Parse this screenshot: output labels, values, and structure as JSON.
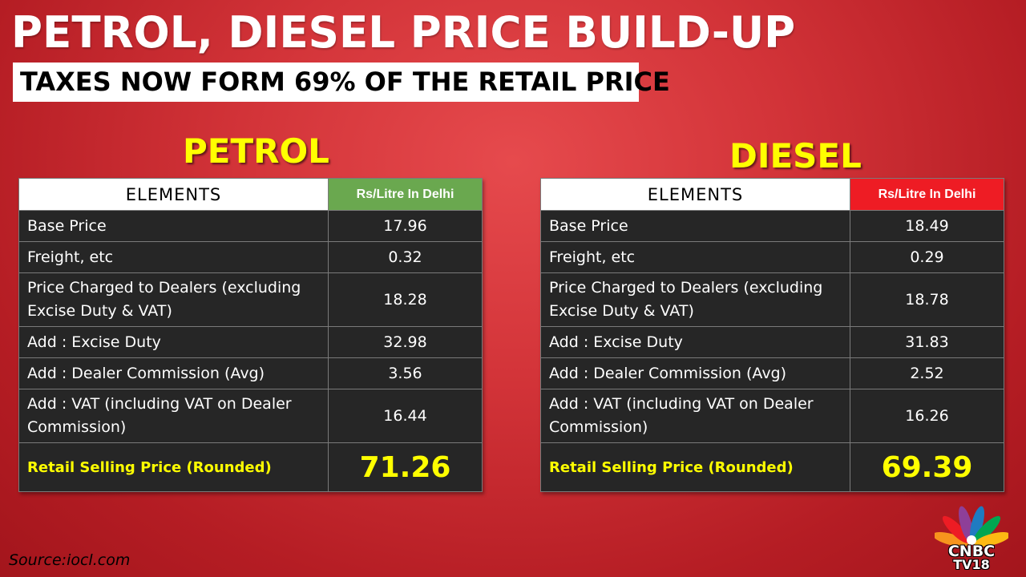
{
  "header": {
    "title": "PETROL, DIESEL PRICE BUILD-UP",
    "subtitle": "TAXES NOW FORM 69% OF THE RETAIL PRICE"
  },
  "colors": {
    "background": "#d23338",
    "petrol_accent": "#6aa84f",
    "diesel_accent": "#ee1c24",
    "highlight": "#ffff00"
  },
  "petrol": {
    "heading": "PETROL",
    "col_elements": "ELEMENTS",
    "col_price": "Rs/Litre In Delhi",
    "rows": [
      {
        "label": "Base Price",
        "value": "17.96"
      },
      {
        "label": "Freight, etc",
        "value": "0.32"
      },
      {
        "label": "Price Charged to Dealers (excluding Excise Duty & VAT)",
        "value": "18.28"
      },
      {
        "label": "Add : Excise Duty",
        "value": "32.98"
      },
      {
        "label": "Add : Dealer Commission (Avg)",
        "value": "3.56"
      },
      {
        "label": "Add : VAT (including VAT on Dealer Commission)",
        "value": "16.44"
      }
    ],
    "total_label": "Retail Selling Price (Rounded)",
    "total_value": "71.26"
  },
  "diesel": {
    "heading": "DIESEL",
    "col_elements": "ELEMENTS",
    "col_price": "Rs/Litre In Delhi",
    "rows": [
      {
        "label": "Base Price",
        "value": "18.49"
      },
      {
        "label": "Freight, etc",
        "value": "0.29"
      },
      {
        "label": "Price Charged to Dealers (excluding Excise Duty & VAT)",
        "value": "18.78"
      },
      {
        "label": "Add : Excise Duty",
        "value": "31.83"
      },
      {
        "label": "Add : Dealer Commission (Avg)",
        "value": "2.52"
      },
      {
        "label": "Add : VAT (including VAT on Dealer Commission)",
        "value": "16.26"
      }
    ],
    "total_label": "Retail Selling Price (Rounded)",
    "total_value": "69.39"
  },
  "footer": {
    "source": "Source:iocl.com",
    "logo_line1": "CNBC",
    "logo_line2": "TV18",
    "logo_icon": "peacock-icon"
  }
}
